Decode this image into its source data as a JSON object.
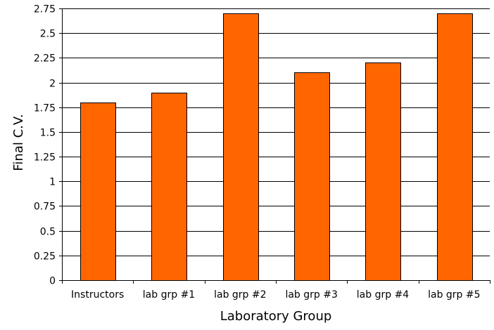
{
  "chart_data": {
    "type": "bar",
    "title": "",
    "xlabel": "Laboratory Group",
    "ylabel": "Final C.V.",
    "categories": [
      "Instructors",
      "lab grp #1",
      "lab grp #2",
      "lab grp #3",
      "lab grp #4",
      "lab grp #5"
    ],
    "values": [
      1.8,
      1.9,
      2.7,
      2.1,
      2.2,
      2.7
    ],
    "ylim": [
      0,
      2.75
    ],
    "yticks": [
      "0",
      "0.25",
      "0.5",
      "0.75",
      "1",
      "1.25",
      "1.5",
      "1.75",
      "2",
      "2.25",
      "2.5",
      "2.75"
    ],
    "grid": true,
    "legend": "none",
    "colors": {
      "bar_fill": "#ff6600",
      "bar_stroke": "#000000",
      "grid": "#000000",
      "axis": "#000000"
    }
  }
}
